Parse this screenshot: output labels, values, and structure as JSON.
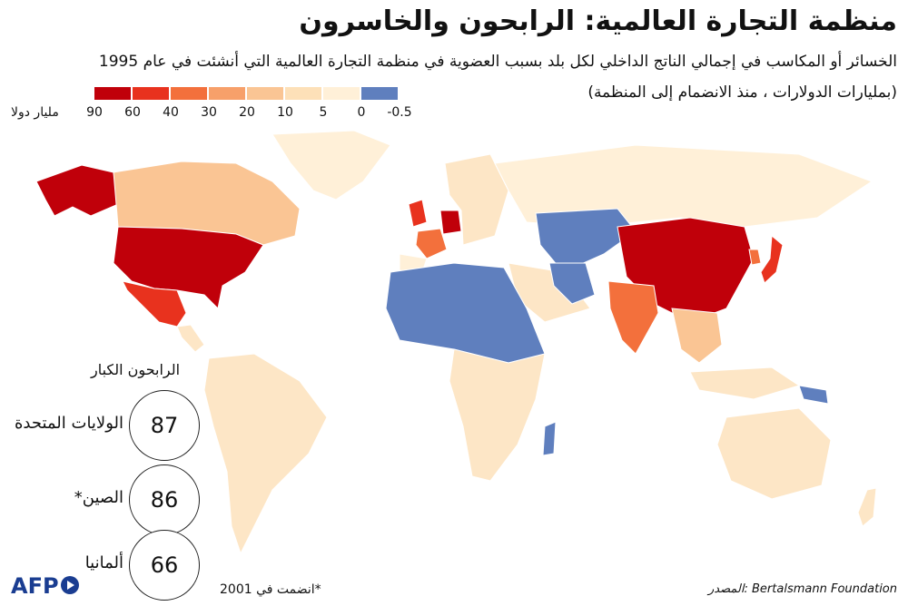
{
  "header": {
    "title": "منظمة التجارة العالمية: الرابحون والخاسرون",
    "subtitle": "الخسائر أو المكاسب في إجمالي الناتج الداخلي لكل بلد بسبب العضوية في منظمة التجارة العالمية التي أنشئت في عام 1995",
    "subtitle2": "(بمليارات الدولارات ، منذ الانضمام إلى المنظمة)"
  },
  "legend": {
    "unit": "مليار دولا",
    "ticks": [
      "90",
      "60",
      "40",
      "30",
      "20",
      "10",
      "5",
      "0",
      "-0.5"
    ],
    "colors": [
      "#c0000a",
      "#e8321e",
      "#f3703c",
      "#f7a06a",
      "#fac594",
      "#fde0b8",
      "#fff0d8",
      "#5f7fbe"
    ]
  },
  "winners": {
    "title": "الرابحون الكبار",
    "items": [
      {
        "value": "87",
        "country": "الولايات المتحدة"
      },
      {
        "value": "86",
        "country": "الصين*"
      },
      {
        "value": "66",
        "country": "ألمانيا"
      }
    ]
  },
  "footnote": "*انضمت في 2001",
  "source": "المصدر: Bertalsmann Foundation",
  "brand": "AFP",
  "map_colors": {
    "usa": "#c0000a",
    "china": "#c0000a",
    "germany": "#c0000a",
    "alaska": "#c0000a",
    "japan": "#e8321e",
    "mexico": "#e8321e",
    "uk": "#e8321e",
    "france": "#f3703c",
    "india": "#f3703c",
    "korea": "#f3703c",
    "canada": "#fac594",
    "loss": "#5f7fbe",
    "neutral": "#fde6c6",
    "light": "#fff0d8"
  }
}
